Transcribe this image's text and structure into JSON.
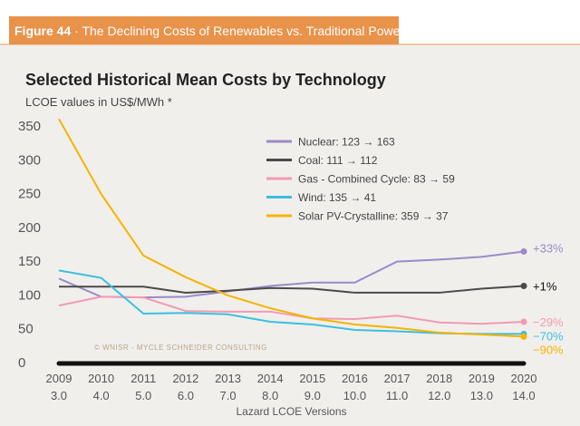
{
  "header": {
    "figure": "Figure 44",
    "separator": " · ",
    "title": "The Declining Costs of Renewables vs. Traditional Power Sources"
  },
  "chart_data": {
    "type": "line",
    "title": "Selected Historical Mean Costs by Technology",
    "ylabel": "LCOE values in US$/MWh *",
    "xlabel": "Lazard LCOE Versions",
    "categories": [
      "2009",
      "2010",
      "2011",
      "2012",
      "2013",
      "2014",
      "2015",
      "2016",
      "2017",
      "2018",
      "2019",
      "2020"
    ],
    "versions": [
      "3.0",
      "4.0",
      "5.0",
      "6.0",
      "7.0",
      "8.0",
      "9.0",
      "10.0",
      "11.0",
      "12.0",
      "13.0",
      "14.0"
    ],
    "ylim": [
      0,
      350
    ],
    "yticks": [
      0,
      50,
      100,
      150,
      200,
      250,
      300,
      350
    ],
    "grid": false,
    "legend_position": "top-right",
    "watermark": "© WNISR - Mycle Schneider Consulting",
    "series": [
      {
        "name": "Nuclear: 123 → 163",
        "color": "#9b8ac9",
        "end_label": "+33%",
        "values": [
          123,
          96,
          95,
          96,
          104,
          112,
          117,
          117,
          148,
          151,
          155,
          163
        ]
      },
      {
        "name": "Coal: 111 → 112",
        "color": "#4a4a4a",
        "end_label": "+1%",
        "label_color": "#111111",
        "values": [
          111,
          111,
          111,
          102,
          105,
          109,
          108,
          102,
          102,
          102,
          108,
          112
        ]
      },
      {
        "name": "Gas - Combined Cycle: 83 → 59",
        "color": "#f29bb0",
        "end_label": "−29%",
        "values": [
          83,
          96,
          95,
          75,
          74,
          74,
          64,
          63,
          68,
          58,
          56,
          59
        ]
      },
      {
        "name": "Wind: 135 → 41",
        "color": "#3bbfe0",
        "end_label": "−70%",
        "values": [
          135,
          124,
          71,
          72,
          70,
          59,
          55,
          47,
          45,
          42,
          41,
          41
        ]
      },
      {
        "name": "Solar PV-Crystalline: 359 → 37",
        "color": "#f5b400",
        "end_label": "−90%",
        "values": [
          359,
          248,
          157,
          125,
          98,
          79,
          64,
          55,
          50,
          43,
          40,
          37
        ]
      }
    ]
  }
}
